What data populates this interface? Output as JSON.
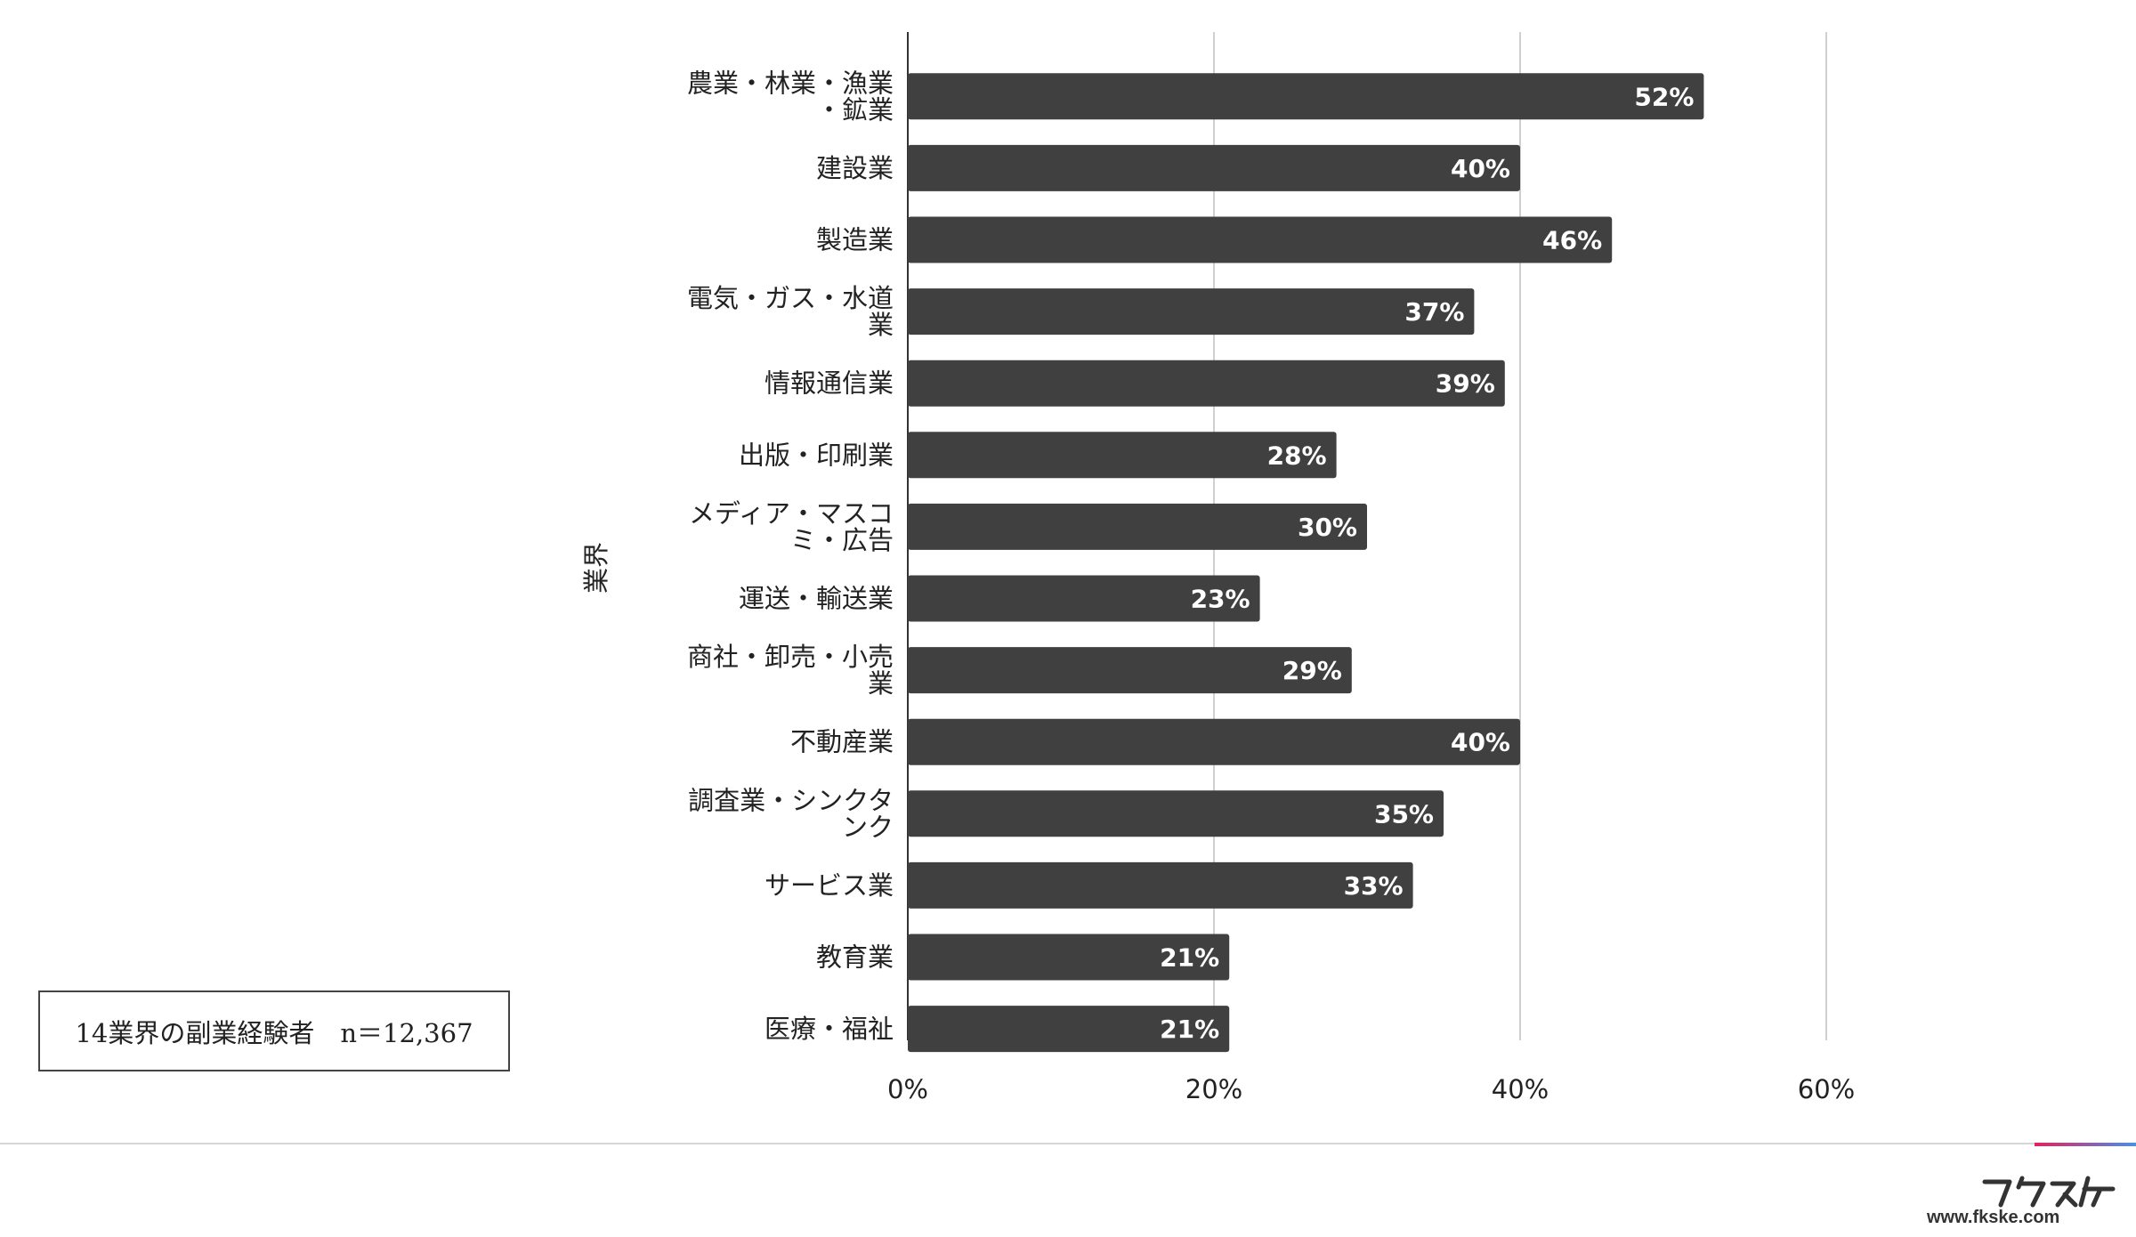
{
  "chart_data": {
    "type": "bar",
    "orientation": "horizontal",
    "ylabel": "業界",
    "xlim": [
      0,
      60
    ],
    "xticks": [
      "0%",
      "20%",
      "40%",
      "60%"
    ],
    "grid": true,
    "categories": [
      [
        "農業・林業・漁業",
        "・鉱業"
      ],
      [
        "建設業"
      ],
      [
        "製造業"
      ],
      [
        "電気・ガス・水道",
        "業"
      ],
      [
        "情報通信業"
      ],
      [
        "出版・印刷業"
      ],
      [
        "メディア・マスコ",
        "ミ・広告"
      ],
      [
        "運送・輸送業"
      ],
      [
        "商社・卸売・小売",
        "業"
      ],
      [
        "不動産業"
      ],
      [
        "調査業・シンクタ",
        "ンク"
      ],
      [
        "サービス業"
      ],
      [
        "教育業"
      ],
      [
        "医療・福祉"
      ]
    ],
    "values": [
      52,
      40,
      46,
      37,
      39,
      28,
      30,
      23,
      29,
      40,
      35,
      33,
      21,
      21
    ],
    "value_labels": [
      "52%",
      "40%",
      "46%",
      "37%",
      "39%",
      "28%",
      "30%",
      "23%",
      "29%",
      "40%",
      "35%",
      "33%",
      "21%",
      "21%"
    ],
    "bar_color": "#404040",
    "label_color": "#ffffff"
  },
  "sample_note": "14業界の副業経験者　n＝12,367",
  "footer": {
    "url": "www.fkske.com",
    "brand": "フクスケ"
  }
}
